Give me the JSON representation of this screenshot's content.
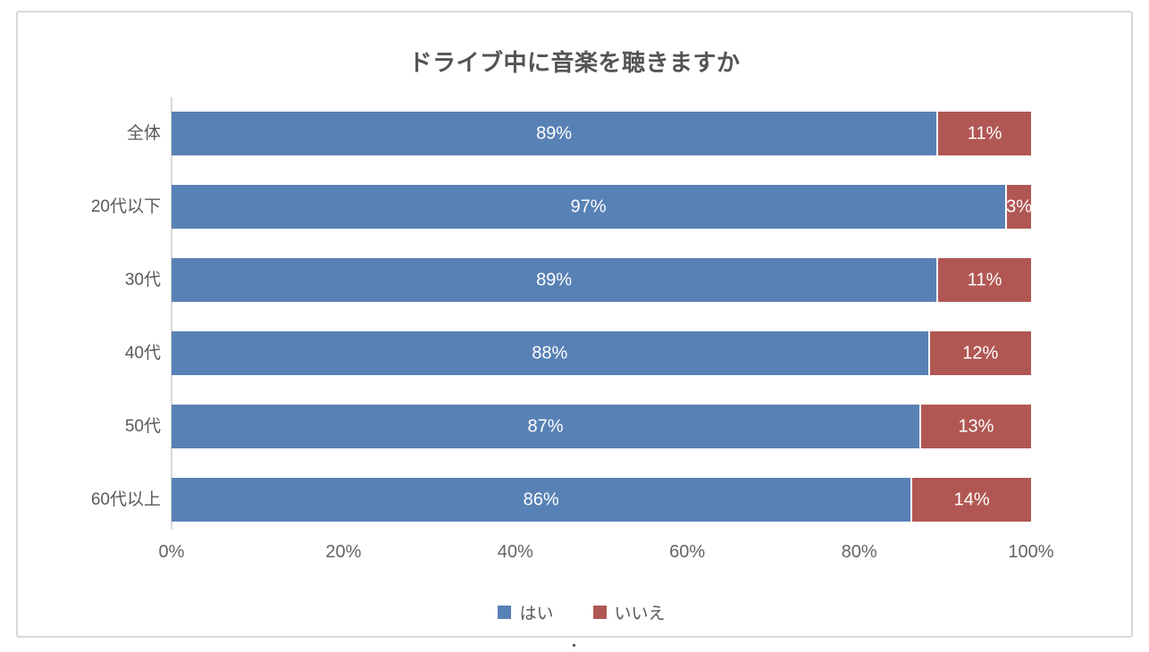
{
  "panel": {
    "background": "#ffffff",
    "border_color": "#d8d8d8"
  },
  "chart_data": {
    "type": "bar",
    "orientation": "horizontal",
    "stacked": true,
    "title": "ドライブ中に音楽を聴きますか",
    "categories": [
      "全体",
      "20代以下",
      "30代",
      "40代",
      "50代",
      "60代以上"
    ],
    "series": [
      {
        "name": "はい",
        "color": "#5881B5",
        "values": [
          89,
          97,
          89,
          88,
          87,
          86
        ]
      },
      {
        "name": "いいえ",
        "color": "#B15753",
        "values": [
          11,
          3,
          11,
          12,
          13,
          14
        ]
      }
    ],
    "data_labels": [
      [
        "89%",
        "11%"
      ],
      [
        "97%",
        "3%"
      ],
      [
        "89%",
        "11%"
      ],
      [
        "88%",
        "12%"
      ],
      [
        "87%",
        "13%"
      ],
      [
        "86%",
        "14%"
      ]
    ],
    "x_ticks": [
      "0%",
      "20%",
      "40%",
      "60%",
      "80%",
      "100%"
    ],
    "xlim": [
      0,
      100
    ],
    "grid": false,
    "legend_position": "bottom",
    "data_label_color": "#ffffff",
    "axis_line_color": "#d9d9d9",
    "text_color": "#595959"
  },
  "caption_dot": ""
}
